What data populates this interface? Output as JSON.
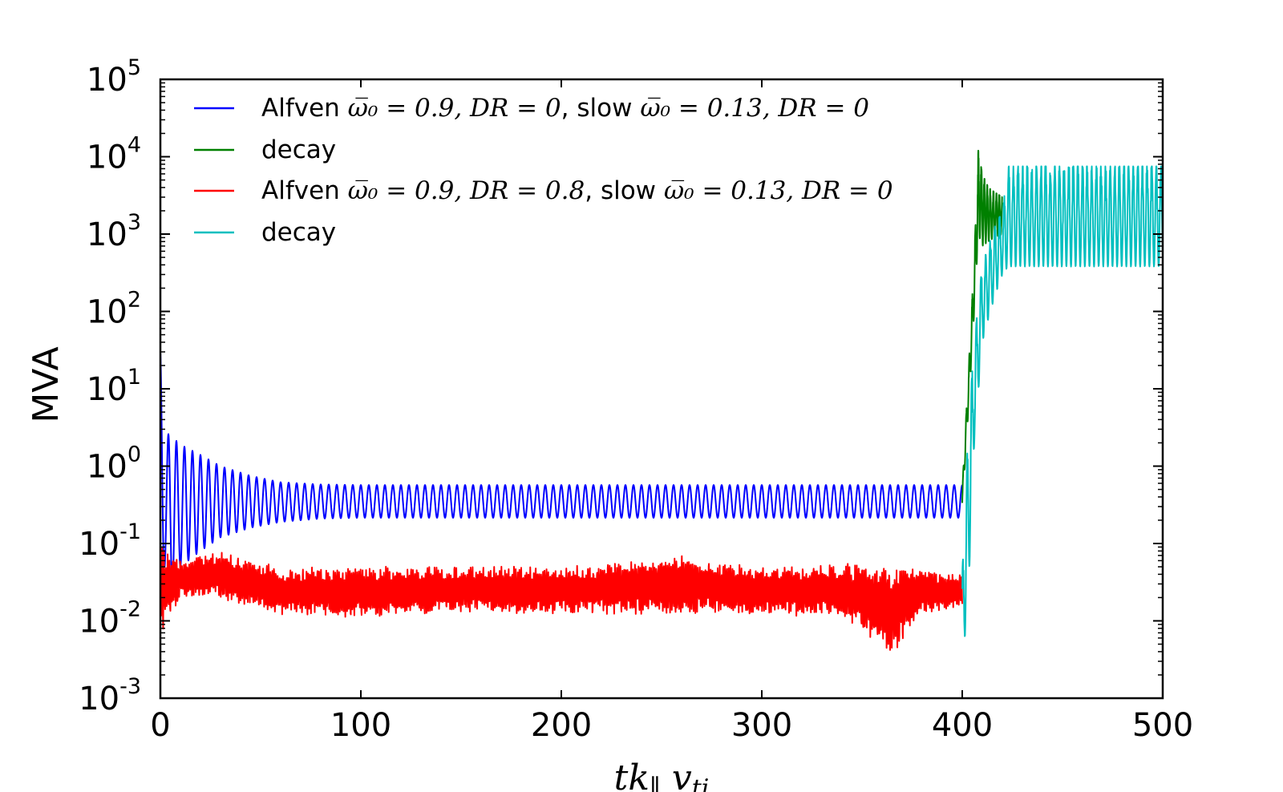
{
  "chart_data": {
    "type": "line",
    "xlabel": "tk∥ v_ti",
    "ylabel": "MVA",
    "x_scale": "linear",
    "y_scale": "log",
    "xlim": [
      0,
      500
    ],
    "ylim": [
      0.001,
      100000
    ],
    "x_ticks": [
      0,
      100,
      200,
      300,
      400,
      500
    ],
    "x_tick_labels": [
      "0",
      "100",
      "200",
      "300",
      "400",
      "500"
    ],
    "y_tick_bases": [
      "10",
      "10",
      "10",
      "10",
      "10",
      "10",
      "10",
      "10",
      "10"
    ],
    "y_tick_exponents": [
      "-3",
      "-2",
      "-1",
      "0",
      "1",
      "2",
      "3",
      "4",
      "5"
    ],
    "grid": false,
    "legend_position": "upper-left",
    "legend": [
      {
        "prefix": "Alfven ",
        "math1": "ω̅₀ = 0.9, DR = 0",
        "mid": ", slow ",
        "math2": "ω̅₀ = 0.13, DR = 0"
      },
      {
        "prefix": "decay",
        "math1": "",
        "mid": "",
        "math2": ""
      },
      {
        "prefix": "Alfven ",
        "math1": "ω̅₀ = 0.9, DR = 0.8",
        "mid": ", slow ",
        "math2": "ω̅₀ = 0.13, DR = 0"
      },
      {
        "prefix": "decay",
        "math1": "",
        "mid": "",
        "math2": ""
      }
    ],
    "series": [
      {
        "color": "#0000ff",
        "x_range": [
          0,
          400
        ],
        "envelope": [
          [
            0,
            30,
            0.02
          ],
          [
            2,
            2.8,
            0.05
          ],
          [
            5,
            2.5,
            0.02
          ],
          [
            10,
            1.9,
            0.05
          ],
          [
            20,
            1.4,
            0.08
          ],
          [
            30,
            1.0,
            0.12
          ],
          [
            45,
            0.75,
            0.16
          ],
          [
            60,
            0.62,
            0.19
          ],
          [
            80,
            0.58,
            0.21
          ],
          [
            100,
            0.57,
            0.215
          ],
          [
            400,
            0.57,
            0.215
          ]
        ],
        "period": 4
      },
      {
        "color": "#008000",
        "x_range": [
          400,
          420
        ],
        "envelope": [
          [
            400,
            0.5,
            0.3
          ],
          [
            403,
            15,
            5
          ],
          [
            406,
            500,
            100
          ],
          [
            408,
            12000,
            1000
          ],
          [
            410,
            6000,
            700
          ],
          [
            413,
            4000,
            800
          ],
          [
            416,
            3500,
            900
          ],
          [
            420,
            3000,
            1000
          ]
        ],
        "period": 1.5
      },
      {
        "color": "#ff0000",
        "x_range": [
          0,
          400
        ],
        "envelope": [
          [
            0,
            0.1,
            0.006
          ],
          [
            10,
            0.06,
            0.02
          ],
          [
            28,
            0.08,
            0.02
          ],
          [
            60,
            0.05,
            0.012
          ],
          [
            100,
            0.05,
            0.011
          ],
          [
            150,
            0.052,
            0.013
          ],
          [
            200,
            0.05,
            0.012
          ],
          [
            260,
            0.07,
            0.012
          ],
          [
            300,
            0.05,
            0.012
          ],
          [
            340,
            0.055,
            0.011
          ],
          [
            365,
            0.06,
            0.0035
          ],
          [
            380,
            0.045,
            0.012
          ],
          [
            400,
            0.04,
            0.015
          ]
        ],
        "period": 0.9
      },
      {
        "color": "#00bfbf",
        "x_range": [
          400,
          500
        ],
        "envelope": [
          [
            400,
            0.04,
            0.0025
          ],
          [
            403,
            3,
            0.02
          ],
          [
            406,
            40,
            2
          ],
          [
            410,
            400,
            40
          ],
          [
            413,
            700,
            80
          ],
          [
            416,
            1200,
            150
          ],
          [
            420,
            2000,
            300
          ],
          [
            423,
            7500,
            380
          ],
          [
            500,
            7500,
            380
          ]
        ],
        "period": 2.3
      }
    ]
  }
}
